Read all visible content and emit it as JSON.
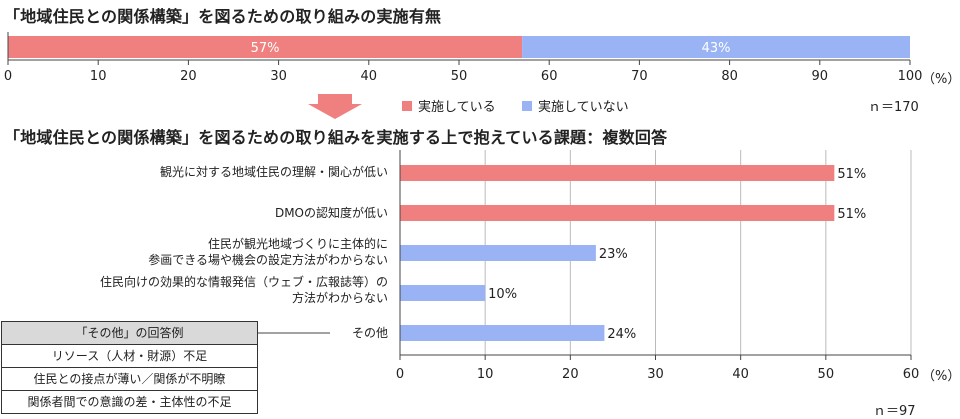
{
  "titles": {
    "chart1": "「地域住民との関係構築」を図るための取り組みの実施有無",
    "chart2": "「地域住民との関係構築」を図るための取り組みを実施する上で抱えている課題：複数回答"
  },
  "colors": {
    "red": "#f08080",
    "blue": "#99b3f5"
  },
  "chart_data": [
    {
      "type": "bar",
      "orientation": "horizontal-stacked",
      "series": [
        {
          "name": "実施している",
          "values": [
            57
          ],
          "color": "#f08080",
          "label": "57%"
        },
        {
          "name": "実施していない",
          "values": [
            43
          ],
          "color": "#99b3f5",
          "label": "43%"
        }
      ],
      "xlim": [
        0,
        100
      ],
      "ticks": [
        "0",
        "10",
        "20",
        "30",
        "40",
        "50",
        "60",
        "70",
        "80",
        "90",
        "100"
      ],
      "unit": "（%）",
      "n": "ｎ＝170",
      "legend": "below"
    },
    {
      "type": "bar",
      "orientation": "horizontal",
      "categories": [
        [
          "観光に対する地域住民の理解・関心が低い"
        ],
        [
          "DMOの認知度が低い"
        ],
        [
          "住民が観光地域づくりに主体的に",
          "参画できる場や機会の設定方法がわからない"
        ],
        [
          "住民向けの効果的な情報発信（ウェブ・広報誌等）の",
          "方法がわからない"
        ],
        [
          "その他"
        ]
      ],
      "values": [
        51,
        51,
        23,
        10,
        24
      ],
      "labels": [
        "51%",
        "51%",
        "23%",
        "10%",
        "24%"
      ],
      "colors": [
        "#f08080",
        "#f08080",
        "#99b3f5",
        "#99b3f5",
        "#99b3f5"
      ],
      "xlim": [
        0,
        60
      ],
      "ticks": [
        "0",
        "10",
        "20",
        "30",
        "40",
        "50",
        "60"
      ],
      "unit": "（%）",
      "n": "ｎ＝97"
    }
  ],
  "other_examples": {
    "header": "「その他」の回答例",
    "items": [
      "リソース（人材・財源）不足",
      "住民との接点が薄い／関係が不明瞭",
      "関係者間での意識の差・主体性の不足"
    ]
  }
}
